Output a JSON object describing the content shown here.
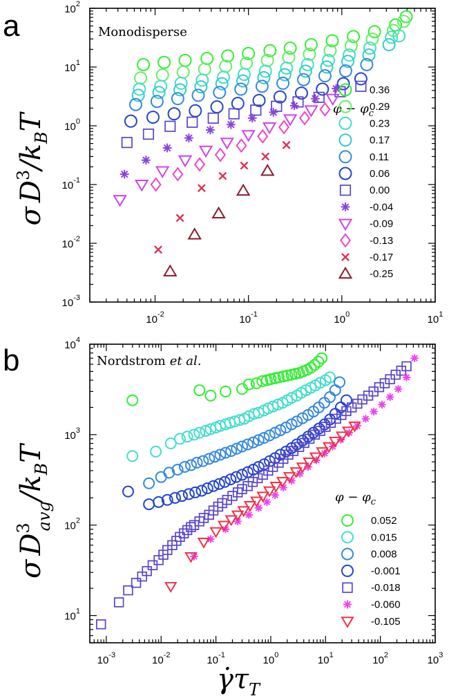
{
  "figure": {
    "xlabel": "γ̇τ_T"
  },
  "chart_data": [
    {
      "type": "scatter",
      "panel_label": "a",
      "title": "Monodisperse",
      "ylabel": "σD³/k_BT",
      "xlabel": "γ̇τ_T",
      "x_scale": "log",
      "y_scale": "log",
      "xlim": [
        0.002,
        10
      ],
      "ylim": [
        0.001,
        100
      ],
      "x_ticks": [
        0.01,
        0.1,
        1,
        10
      ],
      "x_tick_labels": [
        {
          "base": "10",
          "exp": "-2"
        },
        {
          "base": "10",
          "exp": "-1"
        },
        {
          "base": "10",
          "exp": "0"
        },
        {
          "base": "10",
          "exp": "1"
        }
      ],
      "y_ticks": [
        0.001,
        0.01,
        0.1,
        1,
        10,
        100
      ],
      "y_tick_labels": [
        {
          "base": "10",
          "exp": "-3"
        },
        {
          "base": "10",
          "exp": "-2"
        },
        {
          "base": "10",
          "exp": "-1"
        },
        {
          "base": "10",
          "exp": "0"
        },
        {
          "base": "10",
          "exp": "1"
        },
        {
          "base": "10",
          "exp": "2"
        }
      ],
      "legend": {
        "title": "φ − φ_c",
        "position": "right"
      },
      "series": [
        {
          "name": "0.36",
          "marker": "circle",
          "color": "#33ee33",
          "x": [
            0.0075,
            0.0125,
            0.021,
            0.036,
            0.06,
            0.1,
            0.17,
            0.28,
            0.47,
            0.79,
            1.33,
            2.24,
            3.76,
            4.9
          ],
          "y": [
            11,
            12,
            13,
            14,
            15.5,
            17,
            19,
            21,
            24,
            28,
            33,
            40,
            52,
            72
          ]
        },
        {
          "name": "0.29",
          "marker": "circle",
          "color": "#66ee66",
          "x": [
            0.007,
            0.012,
            0.02,
            0.034,
            0.057,
            0.095,
            0.16,
            0.27,
            0.45,
            0.75,
            1.26,
            2.12,
            3.56,
            4.6
          ],
          "y": [
            6.5,
            7.3,
            8.2,
            9.2,
            10.3,
            11.6,
            13,
            14.6,
            16.5,
            19,
            23,
            30,
            42,
            60
          ]
        },
        {
          "name": "0.23",
          "marker": "circle",
          "color": "#44ddcc",
          "x": [
            0.0068,
            0.0115,
            0.019,
            0.032,
            0.054,
            0.09,
            0.152,
            0.256,
            0.43,
            0.72,
            1.2,
            2.0,
            3.4,
            4.1
          ],
          "y": [
            4.2,
            4.7,
            5.3,
            6.0,
            6.7,
            7.5,
            8.5,
            9.6,
            11,
            13,
            16,
            21,
            32,
            34
          ]
        },
        {
          "name": "0.17",
          "marker": "circle",
          "color": "#33cccc",
          "x": [
            0.0066,
            0.011,
            0.0185,
            0.031,
            0.052,
            0.087,
            0.146,
            0.245,
            0.41,
            0.69,
            1.16,
            1.95,
            3.2
          ],
          "y": [
            3.3,
            3.7,
            4.1,
            4.6,
            5.2,
            5.8,
            6.6,
            7.4,
            8.5,
            10,
            12.5,
            16,
            24
          ]
        },
        {
          "name": "0.11",
          "marker": "circle",
          "color": "#3388dd",
          "x": [
            0.0062,
            0.0105,
            0.0175,
            0.029,
            0.049,
            0.083,
            0.14,
            0.234,
            0.39,
            0.66,
            1.1,
            1.85
          ],
          "y": [
            2.3,
            2.6,
            2.9,
            3.3,
            3.7,
            4.2,
            4.7,
            5.3,
            6.1,
            7.1,
            8.6,
            11
          ]
        },
        {
          "name": "0.06",
          "marker": "circle",
          "color": "#2244cc",
          "x": [
            0.0055,
            0.0095,
            0.016,
            0.027,
            0.046,
            0.077,
            0.13,
            0.218,
            0.37,
            0.62,
            1.04,
            1.6
          ],
          "y": [
            1.2,
            1.4,
            1.6,
            1.8,
            2.1,
            2.4,
            2.7,
            3.1,
            3.6,
            4.2,
            5.2,
            6.3
          ]
        },
        {
          "name": "0.00",
          "marker": "square",
          "color": "#5544cc",
          "x": [
            0.005,
            0.0085,
            0.0145,
            0.025,
            0.042,
            0.07,
            0.12,
            0.2,
            0.34,
            0.57,
            0.96,
            1.6
          ],
          "y": [
            0.52,
            0.72,
            0.98,
            1.15,
            1.35,
            1.6,
            1.85,
            2.15,
            2.55,
            3.05,
            3.8,
            4.7
          ]
        },
        {
          "name": "-0.04",
          "marker": "star",
          "color": "#8844dd",
          "x": [
            0.0047,
            0.008,
            0.0135,
            0.023,
            0.039,
            0.065,
            0.11,
            0.185,
            0.31,
            0.52,
            0.87
          ],
          "y": [
            0.15,
            0.26,
            0.42,
            0.62,
            0.85,
            1.05,
            1.35,
            1.7,
            2.2,
            2.9,
            4.3
          ]
        },
        {
          "name": "-0.09",
          "marker": "triangle-down",
          "color": "#cc44ee",
          "x": [
            0.0042,
            0.0072,
            0.012,
            0.021,
            0.035,
            0.059,
            0.1,
            0.168,
            0.28,
            0.47,
            0.8
          ],
          "y": [
            0.055,
            0.1,
            0.17,
            0.26,
            0.38,
            0.52,
            0.7,
            0.95,
            1.3,
            1.85,
            2.9
          ]
        },
        {
          "name": "-0.13",
          "marker": "diamond",
          "color": "#ee44cc",
          "x": [
            0.0102,
            0.0175,
            0.03,
            0.05,
            0.084,
            0.142,
            0.24,
            0.4,
            0.66
          ],
          "y": [
            0.1,
            0.15,
            0.22,
            0.32,
            0.46,
            0.66,
            0.95,
            1.35,
            1.9
          ]
        },
        {
          "name": "-0.17",
          "marker": "x",
          "color": "#dd3355",
          "x": [
            0.0108,
            0.0185,
            0.0315,
            0.053,
            0.09,
            0.152,
            0.255
          ],
          "y": [
            0.0078,
            0.027,
            0.087,
            0.14,
            0.21,
            0.3,
            0.47
          ]
        },
        {
          "name": "-0.25",
          "marker": "triangle-up",
          "color": "#8b1a2a",
          "x": [
            0.0145,
            0.0265,
            0.048,
            0.088,
            0.16
          ],
          "y": [
            0.0033,
            0.014,
            0.032,
            0.078,
            0.17
          ]
        }
      ]
    },
    {
      "type": "scatter",
      "panel_label": "b",
      "title": "Nordstrom et al.",
      "title_parts": {
        "name": "Nordstrom",
        "etal": "et al."
      },
      "ylabel": "σD³_avg/k_BT",
      "xlabel": "γ̇τ_T",
      "x_scale": "log",
      "y_scale": "log",
      "xlim": [
        0.0005,
        1000
      ],
      "ylim": [
        5,
        10000
      ],
      "x_ticks": [
        0.001,
        0.01,
        0.1,
        1,
        10,
        100,
        1000
      ],
      "x_tick_labels": [
        {
          "base": "10",
          "exp": "-3"
        },
        {
          "base": "10",
          "exp": "-2"
        },
        {
          "base": "10",
          "exp": "-1"
        },
        {
          "base": "10",
          "exp": "0"
        },
        {
          "base": "10",
          "exp": "1"
        },
        {
          "base": "10",
          "exp": "2"
        },
        {
          "base": "10",
          "exp": "3"
        }
      ],
      "y_ticks": [
        10,
        100,
        1000,
        10000
      ],
      "y_tick_labels": [
        {
          "base": "10",
          "exp": "1"
        },
        {
          "base": "10",
          "exp": "2"
        },
        {
          "base": "10",
          "exp": "3"
        },
        {
          "base": "10",
          "exp": "4"
        }
      ],
      "legend": {
        "title": "φ − φ_c",
        "position": "bottom-right"
      },
      "series": [
        {
          "name": "0.052",
          "marker": "circle",
          "color": "#33ee33",
          "x": [
            0.003,
            0.05,
            0.08,
            0.15,
            0.3,
            0.4,
            0.55,
            0.7,
            0.85,
            1.0,
            1.2,
            1.4,
            1.7,
            2.0,
            2.4,
            2.8,
            3.3,
            3.9,
            4.6,
            5.4,
            6.3,
            7.4,
            8.5
          ],
          "y": [
            2400,
            3100,
            2700,
            3000,
            3200,
            3600,
            3700,
            3900,
            4000,
            4100,
            4200,
            4300,
            4400,
            4500,
            4600,
            4700,
            4800,
            5000,
            5200,
            5500,
            5900,
            6400,
            7000
          ]
        },
        {
          "name": "0.015",
          "marker": "circle",
          "color": "#44ddcc",
          "x": [
            0.003,
            0.008,
            0.015,
            0.022,
            0.03,
            0.04,
            0.05,
            0.065,
            0.08,
            0.1,
            0.12,
            0.15,
            0.18,
            0.22,
            0.27,
            0.33,
            0.4,
            0.5,
            0.6,
            0.75,
            0.9,
            1.1,
            1.35,
            1.65,
            2.0,
            2.4,
            3.0,
            3.6,
            4.4,
            5.4,
            6.5,
            8.0,
            10,
            12
          ],
          "y": [
            580,
            650,
            800,
            900,
            950,
            1000,
            1050,
            1100,
            1150,
            1200,
            1250,
            1300,
            1350,
            1400,
            1450,
            1500,
            1600,
            1700,
            1750,
            1850,
            1950,
            2050,
            2150,
            2250,
            2400,
            2550,
            2700,
            2900,
            3100,
            3300,
            3500,
            3750,
            4000,
            4300
          ]
        },
        {
          "name": "0.008",
          "marker": "circle",
          "color": "#3388dd",
          "x": [
            0.006,
            0.01,
            0.014,
            0.02,
            0.027,
            0.035,
            0.045,
            0.058,
            0.075,
            0.095,
            0.12,
            0.15,
            0.19,
            0.24,
            0.3,
            0.38,
            0.48,
            0.6,
            0.75,
            0.95,
            1.2,
            1.5,
            1.9,
            2.4,
            3.0,
            3.8,
            4.8,
            6.0,
            7.5,
            9.5,
            12,
            15,
            18
          ],
          "y": [
            290,
            340,
            380,
            410,
            440,
            460,
            490,
            510,
            540,
            570,
            600,
            630,
            660,
            700,
            740,
            780,
            820,
            870,
            920,
            980,
            1050,
            1120,
            1200,
            1300,
            1400,
            1520,
            1650,
            1800,
            2000,
            2250,
            2600,
            3100,
            3800
          ]
        },
        {
          "name": "-0.001",
          "marker": "circle",
          "color": "#2244cc",
          "x": [
            0.0025,
            0.006,
            0.009,
            0.013,
            0.018,
            0.024,
            0.032,
            0.042,
            0.055,
            0.07,
            0.09,
            0.115,
            0.145,
            0.185,
            0.235,
            0.3,
            0.38,
            0.48,
            0.6,
            0.76,
            0.96,
            1.2,
            1.5,
            1.9,
            2.4,
            3.0,
            3.8,
            4.8,
            6.0,
            7.6,
            9.6,
            12,
            15,
            19,
            24
          ],
          "y": [
            235,
            170,
            180,
            190,
            200,
            210,
            220,
            230,
            240,
            255,
            270,
            285,
            300,
            320,
            340,
            360,
            385,
            410,
            440,
            470,
            510,
            550,
            600,
            650,
            710,
            780,
            860,
            950,
            1050,
            1170,
            1300,
            1470,
            1700,
            2000,
            2400
          ]
        },
        {
          "name": "-0.018",
          "marker": "square",
          "color": "#5544cc",
          "x": [
            0.0008,
            0.0017,
            0.0025,
            0.0035,
            0.0045,
            0.0055,
            0.007,
            0.009,
            0.011,
            0.013,
            0.016,
            0.019,
            0.022,
            0.026,
            0.03,
            0.035,
            0.04,
            0.05,
            0.06,
            0.075,
            0.09,
            0.11,
            0.13,
            0.16,
            0.2,
            0.25,
            0.3,
            0.38,
            0.47,
            0.58,
            0.72,
            0.9,
            1.1,
            1.4,
            1.7,
            2.1,
            2.6,
            3.3,
            4.1,
            5.1,
            6.4,
            8,
            10,
            12.5,
            15.6,
            19.5,
            24,
            30,
            38,
            47,
            60,
            75,
            95,
            120,
            150,
            190,
            240,
            300
          ],
          "y": [
            8,
            14,
            19,
            23,
            27,
            31,
            36,
            41,
            47,
            53,
            60,
            67,
            74,
            81,
            88,
            95,
            100,
            110,
            120,
            130,
            145,
            160,
            175,
            190,
            210,
            230,
            250,
            270,
            300,
            330,
            360,
            400,
            440,
            490,
            540,
            600,
            660,
            730,
            810,
            900,
            1000,
            1100,
            1220,
            1350,
            1500,
            1650,
            1820,
            2000,
            2200,
            2450,
            2700,
            3000,
            3350,
            3700,
            4100,
            4600,
            5100,
            5700
          ]
        },
        {
          "name": "-0.060",
          "marker": "star",
          "color": "#ee44ee",
          "x": [
            0.04,
            0.08,
            0.15,
            0.25,
            0.4,
            0.6,
            0.85,
            1.2,
            1.7,
            2.4,
            3.4,
            4.8,
            6.8,
            9.6,
            13.5,
            19,
            27,
            38,
            54,
            76,
            107,
            150,
            212,
            300,
            420
          ],
          "y": [
            45,
            70,
            90,
            110,
            130,
            155,
            180,
            215,
            260,
            310,
            370,
            440,
            520,
            620,
            740,
            880,
            1050,
            1250,
            1500,
            1800,
            2150,
            2600,
            3200,
            4300,
            7000
          ]
        },
        {
          "name": "-0.105",
          "marker": "triangle-down",
          "color": "#ee3344",
          "x": [
            0.015,
            0.035,
            0.06,
            0.1,
            0.14,
            0.19,
            0.25,
            0.32,
            0.42,
            0.55,
            0.72,
            0.95,
            1.25,
            1.65,
            2.2,
            2.9,
            3.8,
            5.0,
            6.6,
            8.7,
            11.5,
            15,
            20,
            26,
            34
          ],
          "y": [
            21,
            45,
            65,
            85,
            100,
            115,
            130,
            145,
            165,
            185,
            210,
            240,
            270,
            305,
            345,
            390,
            440,
            500,
            570,
            650,
            740,
            850,
            970,
            1100,
            1250
          ]
        }
      ]
    }
  ]
}
